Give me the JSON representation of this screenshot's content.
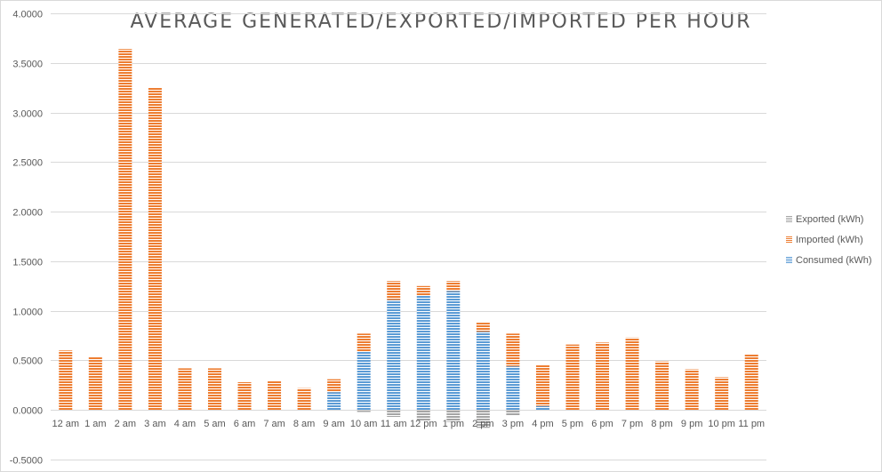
{
  "chart_data": {
    "type": "bar",
    "stacked": true,
    "title": "AVERAGE GENERATED/EXPORTED/IMPORTED PER HOUR",
    "xlabel": "",
    "ylabel": "",
    "ylim": [
      -0.5,
      4.0
    ],
    "ytick_step": 0.5,
    "ytick_decimals": 4,
    "grid": true,
    "legend_position": "right",
    "categories": [
      "12 am",
      "1 am",
      "2 am",
      "3 am",
      "4 am",
      "5 am",
      "6 am",
      "7 am",
      "8 am",
      "9 am",
      "10 am",
      "11 am",
      "12 pm",
      "1 pm",
      "2 pm",
      "3 pm",
      "4 pm",
      "5 pm",
      "6 pm",
      "7 pm",
      "8 pm",
      "9 pm",
      "10 pm",
      "11 pm"
    ],
    "series": [
      {
        "name": "Exported (kWh)",
        "color": "#a5a5a5",
        "values": [
          0,
          0,
          0,
          0,
          0,
          0,
          0,
          0,
          0,
          0,
          -0.02,
          -0.07,
          -0.11,
          -0.12,
          -0.18,
          -0.06,
          0,
          0,
          0,
          0,
          0,
          0,
          0,
          0
        ]
      },
      {
        "name": "Imported (kWh)",
        "color": "#ed7d31",
        "values": [
          0.6,
          0.54,
          3.64,
          3.25,
          0.42,
          0.42,
          0.28,
          0.29,
          0.22,
          0.13,
          0.18,
          0.19,
          0.1,
          0.1,
          0.09,
          0.33,
          0.41,
          0.66,
          0.68,
          0.73,
          0.49,
          0.41,
          0.33,
          0.56
        ]
      },
      {
        "name": "Consumed (kWh)",
        "color": "#5b9bd5",
        "values": [
          0,
          0,
          0,
          0,
          0,
          0,
          0,
          0,
          0,
          0.18,
          0.59,
          1.11,
          1.15,
          1.2,
          0.79,
          0.44,
          0.04,
          0,
          0,
          0,
          0,
          0,
          0,
          0
        ]
      }
    ]
  }
}
